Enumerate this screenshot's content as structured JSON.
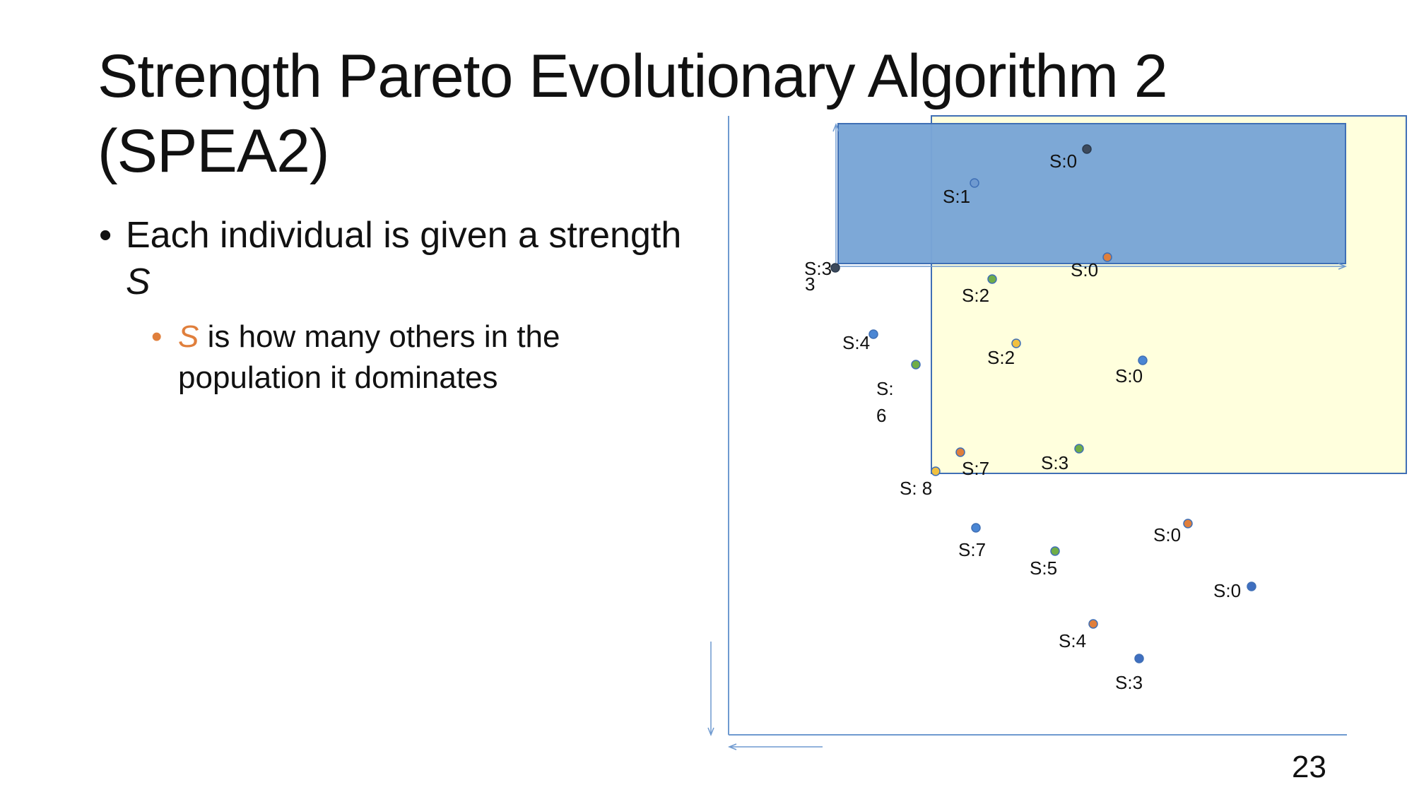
{
  "slide": {
    "title_line_1": "Strength Pareto Evolutionary Algorithm 2",
    "title_line_2": "(SPEA2)",
    "bullet_1": {
      "marker": "•",
      "text": "Each individual is given a strength",
      "symbol": "S"
    },
    "bullet_2": {
      "marker": "•",
      "symbol": "S",
      "text": " is how many others in the population it dominates"
    },
    "page_number": "23"
  },
  "colors": {
    "accent": "#e07f3c",
    "axis": "#6f9ad0",
    "blue_rect_fill": "#79a5d6",
    "blue_rect_stroke": "#3f6fb5",
    "yellow_rect_fill": "#ffffdd",
    "yellow_rect_stroke": "#3f6fb5"
  },
  "diagram": {
    "labels": [
      "S:0",
      "S:1",
      "S:0",
      "S:3",
      "3",
      "S:2",
      "S:4",
      "S:2",
      "S:0",
      "S:",
      "6",
      "S:7",
      "S:3",
      "S: 8",
      "S:0",
      "S:7",
      "S:5",
      "S:0",
      "S:4",
      "S:3"
    ],
    "points": [
      {
        "color": "#3d4a5c",
        "label": "S:0"
      },
      {
        "color": "#6f9ad0",
        "label": "S:1"
      },
      {
        "color": "#e07f3c",
        "label": "S:0"
      },
      {
        "color": "#3d4a5c",
        "label": "S:3"
      },
      {
        "color": "#70ad47",
        "label": "S:2"
      },
      {
        "color": "#4a86d4",
        "label": "S:4"
      },
      {
        "color": "#f0c040",
        "label": "S:2"
      },
      {
        "color": "#4a86d4",
        "label": "S:0"
      },
      {
        "color": "#70ad47",
        "label": "S:6"
      },
      {
        "color": "#e07f3c",
        "label": "S:7"
      },
      {
        "color": "#70ad47",
        "label": "S:3"
      },
      {
        "color": "#f0c040",
        "label": "S:8"
      },
      {
        "color": "#4a86d4",
        "label": "S:7"
      },
      {
        "color": "#70ad47",
        "label": "S:5"
      },
      {
        "color": "#e07f3c",
        "label": "S:0"
      },
      {
        "color": "#3f6fc0",
        "label": "S:0"
      },
      {
        "color": "#e07f3c",
        "label": "S:4"
      },
      {
        "color": "#3f6fc0",
        "label": "S:3"
      }
    ]
  }
}
